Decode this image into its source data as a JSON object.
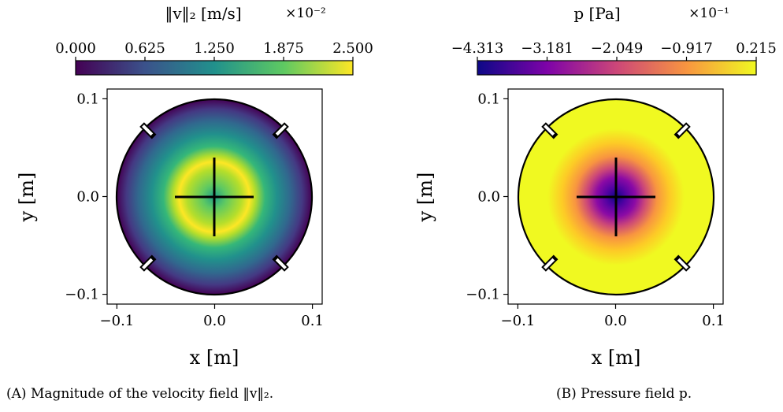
{
  "figure": {
    "captions": [
      {
        "label": "(A)",
        "text": "Magnitude of the velocity field ‖v‖₂."
      },
      {
        "label": "(B)",
        "text": "Pressure field p."
      }
    ]
  },
  "chart_data": [
    {
      "type": "heatmap",
      "field": "velocity-magnitude",
      "colorbar": {
        "label": "‖v‖₂ [m/s]",
        "multiplier": "×10⁻²",
        "ticks": [
          "0.000",
          "0.625",
          "1.250",
          "1.875",
          "2.500"
        ],
        "range": [
          0.0,
          2.5
        ],
        "colormap": "viridis",
        "colors": [
          "#440154",
          "#3b528b",
          "#21918c",
          "#5ec962",
          "#fde725"
        ]
      },
      "xlabel": "x [m]",
      "ylabel": "y [m]",
      "xlim": [
        -0.11,
        0.11
      ],
      "ylim": [
        -0.11,
        0.11
      ],
      "xticks": [
        "−0.1",
        "0.0",
        "0.1"
      ],
      "yticks": [
        "0.1",
        "0.0",
        "−0.1"
      ],
      "domain": {
        "shape": "circle",
        "radius": 0.1,
        "notches_deg": [
          45,
          135,
          225,
          315
        ]
      },
      "obstacle": {
        "shape": "cross",
        "half_length": 0.04
      },
      "profile": {
        "description": "ring of maximum speed",
        "peak_radius": 0.04,
        "peak_value": 2.5,
        "edge_value": 0.0
      }
    },
    {
      "type": "heatmap",
      "field": "pressure",
      "colorbar": {
        "label": "p [Pa]",
        "multiplier": "×10⁻¹",
        "ticks": [
          "−4.313",
          "−3.181",
          "−2.049",
          "−0.917",
          "0.215"
        ],
        "range": [
          -4.313,
          0.215
        ],
        "colormap": "plasma",
        "colors": [
          "#0d0887",
          "#7e03a8",
          "#cc4778",
          "#f89540",
          "#f0f921"
        ]
      },
      "xlabel": "x [m]",
      "ylabel": "y [m]",
      "xlim": [
        -0.11,
        0.11
      ],
      "ylim": [
        -0.11,
        0.11
      ],
      "xticks": [
        "−0.1",
        "0.0",
        "0.1"
      ],
      "yticks": [
        "0.1",
        "0.0",
        "−0.1"
      ],
      "domain": {
        "shape": "circle",
        "radius": 0.1,
        "notches_deg": [
          45,
          135,
          225,
          315
        ]
      },
      "obstacle": {
        "shape": "cross",
        "half_length": 0.04
      },
      "profile": {
        "description": "low pressure at center",
        "center_value": -4.313,
        "edge_value": 0.215
      }
    }
  ]
}
